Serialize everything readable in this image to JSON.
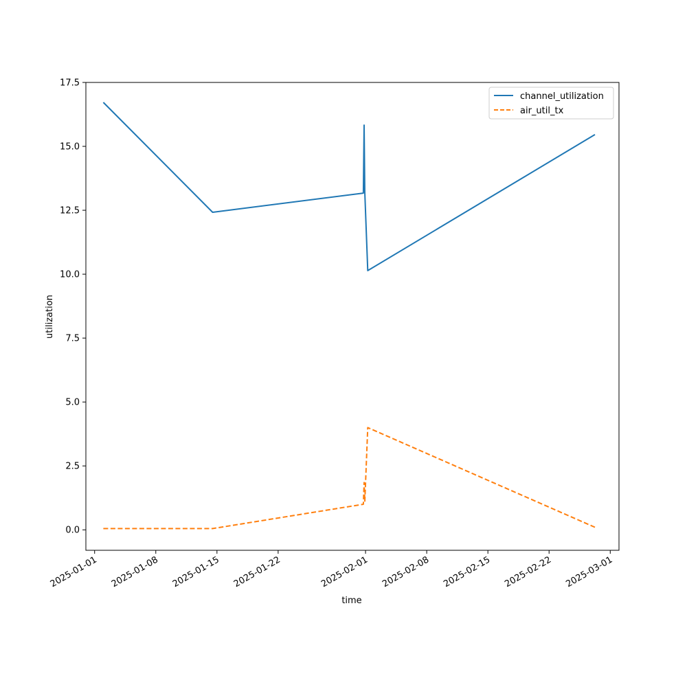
{
  "chart_data": {
    "type": "line",
    "title": "",
    "xlabel": "time",
    "ylabel": "utilization",
    "x_axis_type": "date",
    "xlim": [
      "2024-12-31",
      "2025-03-02"
    ],
    "ylim": [
      -0.8,
      17.5
    ],
    "grid": false,
    "legend_position": "top-right",
    "x_ticks": [
      "2025-01-01",
      "2025-01-08",
      "2025-01-15",
      "2025-01-22",
      "2025-02-01",
      "2025-02-08",
      "2025-02-15",
      "2025-02-22",
      "2025-03-01"
    ],
    "y_ticks": [
      0.0,
      2.5,
      5.0,
      7.5,
      10.0,
      12.5,
      15.0,
      17.5
    ],
    "series": [
      {
        "name": "channel_utilization",
        "color": "#1f77b4",
        "line_style": "solid",
        "points": [
          {
            "x": "2025-01-02T00:00",
            "y": 16.72
          },
          {
            "x": "2025-01-14T12:00",
            "y": 12.42
          },
          {
            "x": "2025-01-31T18:00",
            "y": 13.17
          },
          {
            "x": "2025-01-31T20:00",
            "y": 15.83
          },
          {
            "x": "2025-01-31T22:00",
            "y": 13.2
          },
          {
            "x": "2025-02-01T06:00",
            "y": 10.14
          },
          {
            "x": "2025-02-27T06:00",
            "y": 15.46
          }
        ]
      },
      {
        "name": "air_util_tx",
        "color": "#ff7f0e",
        "line_style": "dashed",
        "points": [
          {
            "x": "2025-01-02T00:00",
            "y": 0.05
          },
          {
            "x": "2025-01-14T12:00",
            "y": 0.05
          },
          {
            "x": "2025-01-31T18:00",
            "y": 1.0
          },
          {
            "x": "2025-01-31T20:00",
            "y": 1.85
          },
          {
            "x": "2025-01-31T22:00",
            "y": 1.1
          },
          {
            "x": "2025-02-01T06:00",
            "y": 4.0
          },
          {
            "x": "2025-02-27T06:00",
            "y": 0.1
          }
        ]
      }
    ]
  }
}
